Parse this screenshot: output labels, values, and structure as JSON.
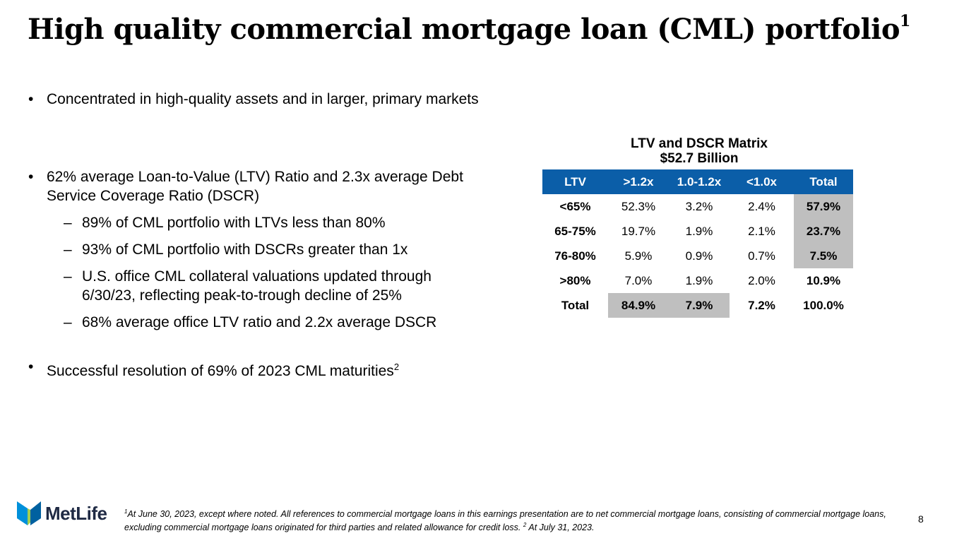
{
  "title": {
    "text": "High quality commercial mortgage loan (CML) portfolio",
    "sup": "1"
  },
  "bullets": {
    "b1": "Concentrated in high-quality assets and in larger, primary markets",
    "b2": "62% average Loan-to-Value (LTV) Ratio and 2.3x average Debt Service Coverage Ratio (DSCR)",
    "b2_sub": [
      "89% of CML portfolio with LTVs less than 80%",
      "93% of CML portfolio with DSCRs greater than 1x",
      "U.S. office CML collateral valuations updated through 6/30/23, reflecting peak-to-trough decline of 25%",
      "68% average office LTV ratio and 2.2x average DSCR"
    ],
    "b3": "Successful resolution of 69% of 2023 CML maturities",
    "b3_sup": "2",
    "bullet_glyph": "•",
    "dash_glyph": "–"
  },
  "matrix": {
    "title": "LTV and DSCR Matrix",
    "subtitle": "$52.7 Billion",
    "headers": [
      "LTV",
      ">1.2x",
      "1.0-1.2x",
      "<1.0x",
      "Total"
    ],
    "rows": [
      {
        "cells": [
          "<65%",
          "52.3%",
          "3.2%",
          "2.4%",
          "57.9%"
        ]
      },
      {
        "cells": [
          "65-75%",
          "19.7%",
          "1.9%",
          "2.1%",
          "23.7%"
        ]
      },
      {
        "cells": [
          "76-80%",
          "5.9%",
          "0.9%",
          "0.7%",
          "7.5%"
        ]
      },
      {
        "cells": [
          ">80%",
          "7.0%",
          "1.9%",
          "2.0%",
          "10.9%"
        ]
      },
      {
        "cells": [
          "Total",
          "84.9%",
          "7.9%",
          "7.2%",
          "100.0%"
        ]
      }
    ],
    "colors": {
      "header_bg": "#0b5ea8",
      "shade": "#bfbfbf"
    }
  },
  "footer": {
    "sup1": "1",
    "note1": "At June 30, 2023, except where noted. All references to commercial mortgage loans in this earnings presentation are to net commercial mortgage loans, consisting of commercial mortgage loans, excluding commercial mortgage loans originated for third parties and related allowance for credit loss.",
    "sup2": "2",
    "note2": "At July 31, 2023.",
    "page_number": "8"
  },
  "logo": {
    "text": "MetLife",
    "icon": "metlife-logo-icon",
    "colors": [
      "#0090da",
      "#a4ce4e",
      "#0061a0"
    ]
  }
}
